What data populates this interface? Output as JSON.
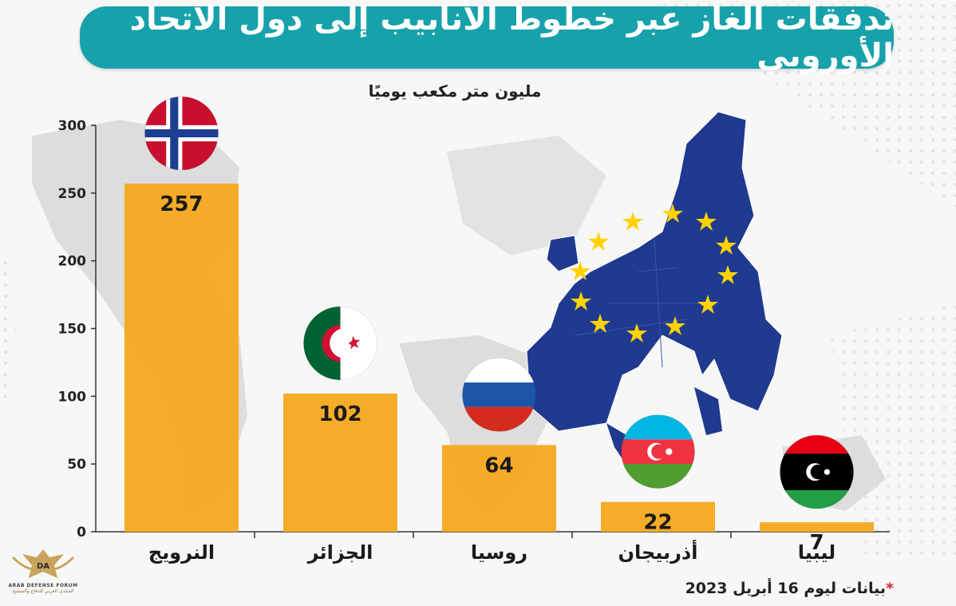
{
  "title": "تدفقات الغاز عبر خطوط الأنابيب إلى دول الاتحاد الأوروبي",
  "unit_label": "مليون متر مكعب يوميًا",
  "footnote": {
    "star": "*",
    "text": "بيانات ليوم 16 أبريل 2023"
  },
  "logo": {
    "monogram": "DA",
    "name": "ARAB DEFENSE FORUM",
    "subtitle": "المنتدى العربي للدفاع والتسليح"
  },
  "colors": {
    "title_bg": "#17a2ab",
    "bar": "#f5a81c",
    "eu_blue": "#1f3a8f",
    "eu_star": "#ffd200"
  },
  "chart_data": {
    "type": "bar",
    "title": "تدفقات الغاز عبر خطوط الأنابيب إلى دول الاتحاد الأوروبي",
    "ylabel": "مليون متر مكعب يوميًا",
    "xlabel": "",
    "categories": [
      "النرويج",
      "الجزائر",
      "روسيا",
      "أذربيجان",
      "ليبيا"
    ],
    "values": [
      257,
      102,
      64,
      22,
      7
    ],
    "data_labels": [
      "257",
      "102",
      "64",
      "22",
      "7"
    ],
    "flags": [
      "norway-flag",
      "algeria-flag",
      "russia-flag",
      "azerbaijan-flag",
      "libya-flag"
    ],
    "ylim": [
      0,
      300
    ],
    "yticks": [
      0,
      50,
      100,
      150,
      200,
      250,
      300
    ],
    "grid": false
  }
}
